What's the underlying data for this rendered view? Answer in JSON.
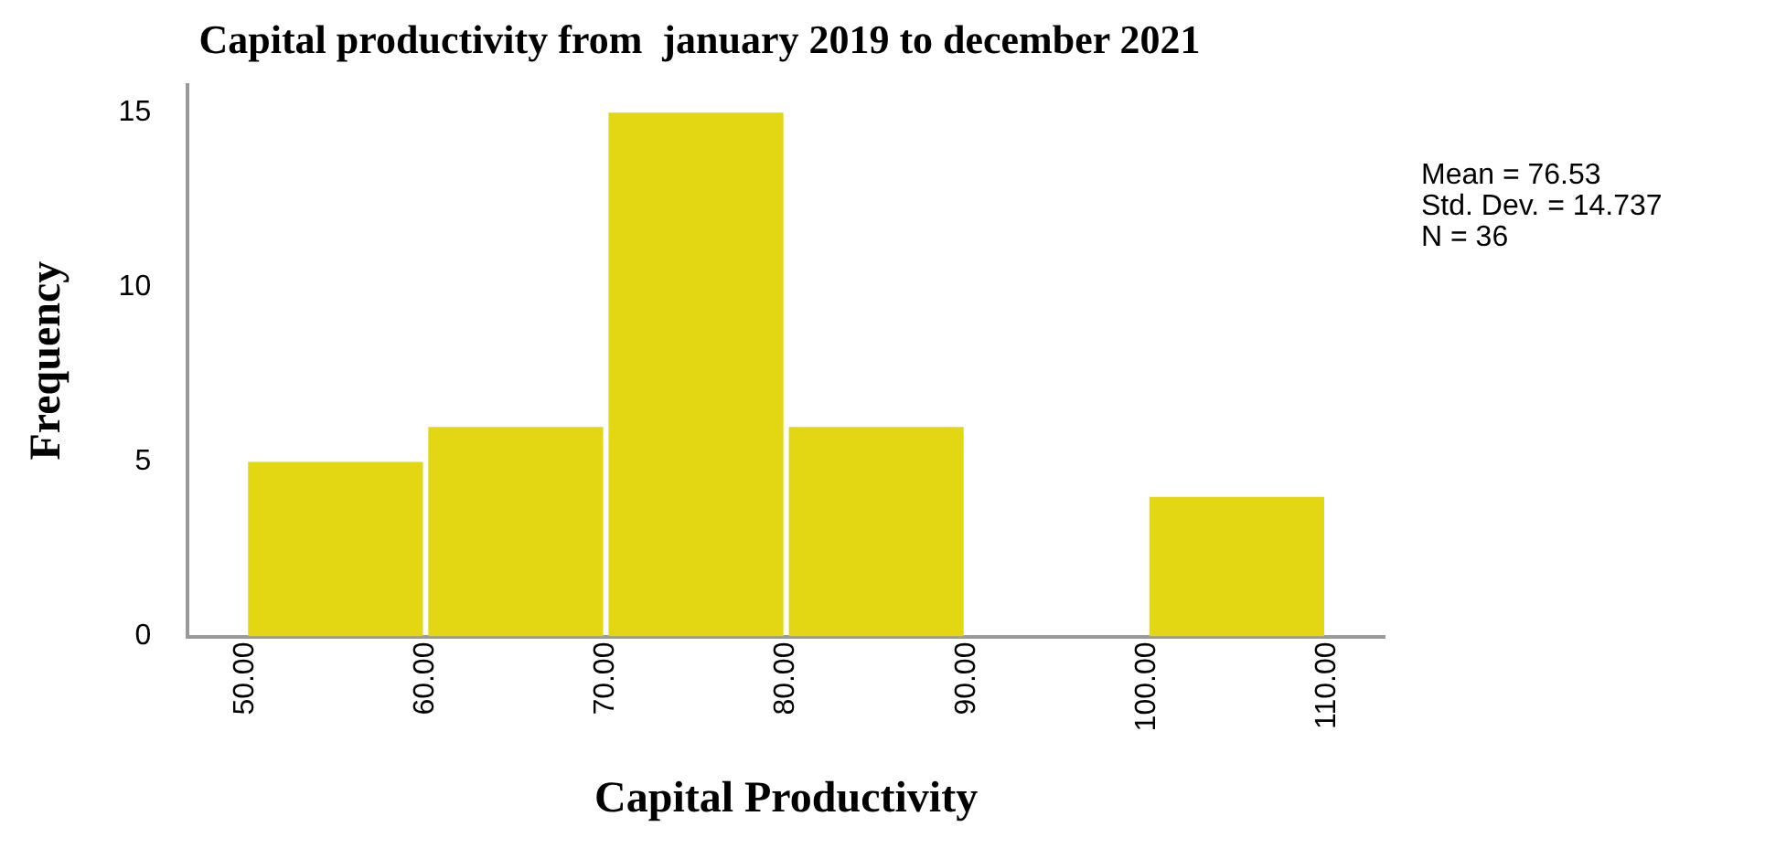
{
  "chart_data": {
    "type": "histogram",
    "title": "Capital productivity from  january 2019 to december 2021",
    "xlabel": "Capital Productivity",
    "ylabel": "Frequency",
    "bins": [
      50,
      60,
      70,
      80,
      90,
      100,
      110
    ],
    "values": [
      5,
      6,
      15,
      6,
      0,
      4
    ],
    "color": "#e3d613",
    "xlim": [
      46.8,
      113.2
    ],
    "xticks": [
      {
        "value": 50,
        "label": "50.00"
      },
      {
        "value": 60,
        "label": "60.00"
      },
      {
        "value": 70,
        "label": "70.00"
      },
      {
        "value": 80,
        "label": "80.00"
      },
      {
        "value": 90,
        "label": "90.00"
      },
      {
        "value": 100,
        "label": "100.00"
      },
      {
        "value": 110,
        "label": "110.00"
      }
    ],
    "ylim": [
      0,
      15.8
    ],
    "yticks": [
      0,
      5,
      10,
      15
    ],
    "grid": false,
    "legend": false,
    "annotations": [
      "Mean = 76.53",
      "Std. Dev. = 14.737",
      "N = 36"
    ]
  }
}
